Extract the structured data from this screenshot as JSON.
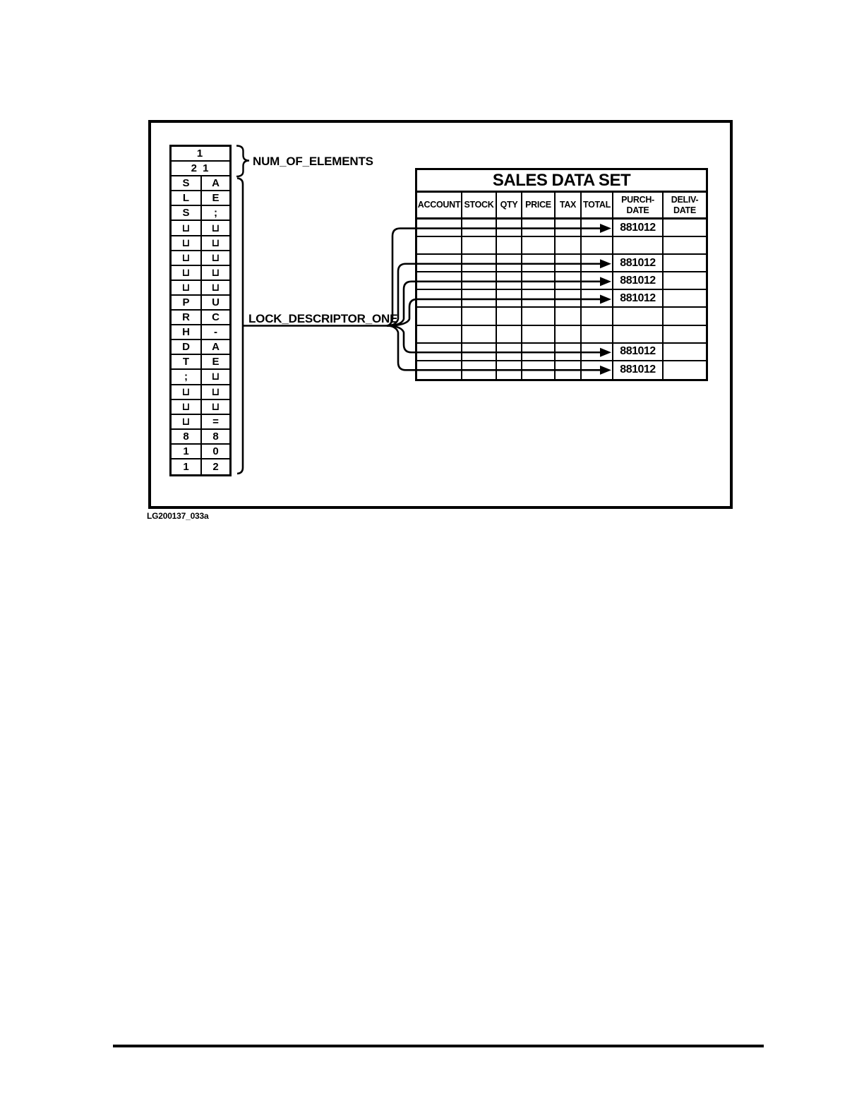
{
  "figure": {
    "caption": "LG200137_033a",
    "num_label": "NUM_OF_ELEMENTS",
    "lock_label": "LOCK_DESCRIPTOR_ONE",
    "memory": {
      "count_rows": [
        "1",
        "2 1"
      ],
      "char_rows": [
        [
          "S",
          "A"
        ],
        [
          "L",
          "E"
        ],
        [
          "S",
          ";"
        ],
        [
          "⊔",
          "⊔"
        ],
        [
          "⊔",
          "⊔"
        ],
        [
          "⊔",
          "⊔"
        ],
        [
          "⊔",
          "⊔"
        ],
        [
          "⊔",
          "⊔"
        ],
        [
          "P",
          "U"
        ],
        [
          "R",
          "C"
        ],
        [
          "H",
          "-"
        ],
        [
          "D",
          "A"
        ],
        [
          "T",
          "E"
        ],
        [
          ";",
          "⊔"
        ],
        [
          "⊔",
          "⊔"
        ],
        [
          "⊔",
          "⊔"
        ],
        [
          "⊔",
          "="
        ],
        [
          "8",
          "8"
        ],
        [
          "1",
          "0"
        ],
        [
          "1",
          "2"
        ]
      ]
    },
    "table": {
      "title": "SALES DATA SET",
      "columns": [
        "ACCOUNT",
        "STOCK",
        "QTY",
        "PRICE",
        "TAX",
        "TOTAL",
        "PURCH-\nDATE",
        "DELIV-\nDATE"
      ],
      "purch_date_column_index": 6,
      "rows": [
        {
          "arrow": true,
          "purch_date": "881012"
        },
        {
          "arrow": false,
          "purch_date": ""
        },
        {
          "arrow": true,
          "purch_date": "881012"
        },
        {
          "arrow": true,
          "purch_date": "881012"
        },
        {
          "arrow": true,
          "purch_date": "881012"
        },
        {
          "arrow": false,
          "purch_date": ""
        },
        {
          "arrow": false,
          "purch_date": ""
        },
        {
          "arrow": true,
          "purch_date": "881012"
        },
        {
          "arrow": true,
          "purch_date": "881012"
        }
      ]
    }
  }
}
